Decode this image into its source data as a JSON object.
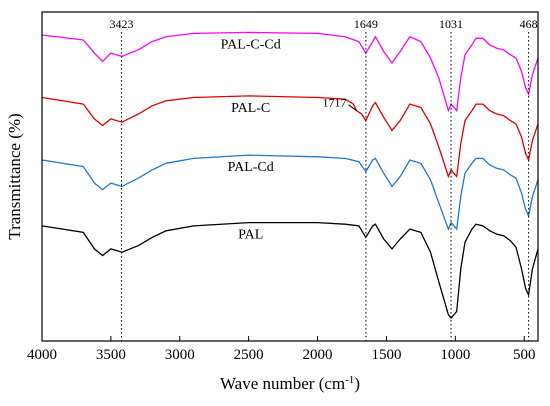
{
  "chart_data": {
    "type": "line",
    "title": "",
    "xlabel": "Wave number (cm",
    "xlabel_sup": "-1",
    "xlabel_suffix": ")",
    "ylabel": "Transmittance (%)",
    "xlim": [
      4000,
      400
    ],
    "x_reversed": true,
    "ylim": [
      0,
      100
    ],
    "grid": false,
    "x_ticks": [
      4000,
      3500,
      3000,
      2500,
      2000,
      1500,
      1000,
      500
    ],
    "x_tick_labels": [
      "4000",
      "3500",
      "3000",
      "2500",
      "2000",
      "1500",
      "1000",
      "500"
    ],
    "peak_markers": [
      {
        "x": 3423,
        "label": "3423"
      },
      {
        "x": 1649,
        "label": "1649"
      },
      {
        "x": 1031,
        "label": "1031"
      },
      {
        "x": 468,
        "label": "468"
      }
    ],
    "annotation": {
      "x": 1717,
      "label": "1717"
    },
    "series": [
      {
        "name": "PAL-C-Cd",
        "color": "#ff00ff",
        "points": [
          [
            4000,
            93
          ],
          [
            3700,
            91.5
          ],
          [
            3620,
            87.5
          ],
          [
            3560,
            85
          ],
          [
            3500,
            87.5
          ],
          [
            3420,
            86.5
          ],
          [
            3300,
            88.5
          ],
          [
            3200,
            91
          ],
          [
            3100,
            92.5
          ],
          [
            2900,
            93.5
          ],
          [
            2500,
            93.8
          ],
          [
            2000,
            93.5
          ],
          [
            1800,
            92.5
          ],
          [
            1700,
            91
          ],
          [
            1650,
            87.5
          ],
          [
            1600,
            91
          ],
          [
            1580,
            92.5
          ],
          [
            1520,
            88
          ],
          [
            1460,
            84.5
          ],
          [
            1400,
            88
          ],
          [
            1330,
            92.5
          ],
          [
            1250,
            91
          ],
          [
            1180,
            86
          ],
          [
            1120,
            80
          ],
          [
            1050,
            70
          ],
          [
            1031,
            72
          ],
          [
            990,
            70
          ],
          [
            960,
            80
          ],
          [
            930,
            87
          ],
          [
            880,
            90
          ],
          [
            850,
            92
          ],
          [
            800,
            92
          ],
          [
            750,
            90
          ],
          [
            700,
            89
          ],
          [
            650,
            88.5
          ],
          [
            600,
            87
          ],
          [
            560,
            86
          ],
          [
            520,
            82
          ],
          [
            490,
            77
          ],
          [
            468,
            75
          ],
          [
            440,
            81
          ],
          [
            400,
            86
          ]
        ]
      },
      {
        "name": "PAL-C",
        "color": "#e00000",
        "points": [
          [
            4000,
            74
          ],
          [
            3700,
            72
          ],
          [
            3620,
            67.5
          ],
          [
            3560,
            65.5
          ],
          [
            3500,
            67.5
          ],
          [
            3420,
            66.5
          ],
          [
            3300,
            69
          ],
          [
            3200,
            71.5
          ],
          [
            3100,
            73
          ],
          [
            2900,
            74
          ],
          [
            2500,
            74.5
          ],
          [
            2000,
            74
          ],
          [
            1800,
            73.5
          ],
          [
            1740,
            72
          ],
          [
            1717,
            70
          ],
          [
            1680,
            69
          ],
          [
            1650,
            67
          ],
          [
            1600,
            71.5
          ],
          [
            1580,
            72.5
          ],
          [
            1520,
            68
          ],
          [
            1460,
            64
          ],
          [
            1400,
            67
          ],
          [
            1330,
            72
          ],
          [
            1250,
            71
          ],
          [
            1180,
            66
          ],
          [
            1120,
            59
          ],
          [
            1050,
            50
          ],
          [
            1031,
            52
          ],
          [
            990,
            50
          ],
          [
            960,
            60
          ],
          [
            930,
            67
          ],
          [
            880,
            70
          ],
          [
            850,
            72
          ],
          [
            800,
            72
          ],
          [
            750,
            70
          ],
          [
            700,
            69
          ],
          [
            650,
            68.5
          ],
          [
            600,
            67
          ],
          [
            560,
            66
          ],
          [
            520,
            62
          ],
          [
            490,
            57
          ],
          [
            468,
            55
          ],
          [
            440,
            61
          ],
          [
            400,
            66
          ]
        ]
      },
      {
        "name": "PAL-Cd",
        "color": "#1e78d2",
        "points": [
          [
            4000,
            55
          ],
          [
            3700,
            53
          ],
          [
            3620,
            48
          ],
          [
            3560,
            46
          ],
          [
            3500,
            48
          ],
          [
            3420,
            47
          ],
          [
            3300,
            49.5
          ],
          [
            3200,
            52
          ],
          [
            3100,
            54
          ],
          [
            2900,
            55.5
          ],
          [
            2500,
            56.5
          ],
          [
            2000,
            56
          ],
          [
            1800,
            55.5
          ],
          [
            1700,
            54.5
          ],
          [
            1650,
            51.5
          ],
          [
            1600,
            55
          ],
          [
            1580,
            55.5
          ],
          [
            1520,
            51
          ],
          [
            1460,
            47
          ],
          [
            1400,
            50
          ],
          [
            1330,
            55
          ],
          [
            1250,
            54
          ],
          [
            1180,
            49
          ],
          [
            1120,
            42
          ],
          [
            1050,
            34
          ],
          [
            1031,
            36
          ],
          [
            990,
            34
          ],
          [
            960,
            44
          ],
          [
            930,
            51
          ],
          [
            880,
            54
          ],
          [
            850,
            55.5
          ],
          [
            800,
            55.5
          ],
          [
            750,
            53.5
          ],
          [
            700,
            52.5
          ],
          [
            650,
            52
          ],
          [
            600,
            50.5
          ],
          [
            560,
            49.5
          ],
          [
            520,
            45
          ],
          [
            490,
            40
          ],
          [
            468,
            38
          ],
          [
            440,
            44
          ],
          [
            400,
            49
          ]
        ]
      },
      {
        "name": "PAL",
        "color": "#000000",
        "points": [
          [
            4000,
            35
          ],
          [
            3700,
            33
          ],
          [
            3620,
            28
          ],
          [
            3560,
            26
          ],
          [
            3500,
            28
          ],
          [
            3420,
            27
          ],
          [
            3300,
            29
          ],
          [
            3200,
            31.5
          ],
          [
            3100,
            33.5
          ],
          [
            2900,
            35
          ],
          [
            2500,
            36
          ],
          [
            2000,
            36
          ],
          [
            1800,
            35.5
          ],
          [
            1700,
            35
          ],
          [
            1650,
            31.5
          ],
          [
            1600,
            35
          ],
          [
            1580,
            35.5
          ],
          [
            1520,
            31
          ],
          [
            1460,
            28
          ],
          [
            1400,
            31
          ],
          [
            1330,
            34
          ],
          [
            1250,
            33
          ],
          [
            1180,
            27
          ],
          [
            1120,
            18
          ],
          [
            1050,
            8
          ],
          [
            1031,
            7
          ],
          [
            990,
            9
          ],
          [
            960,
            22
          ],
          [
            930,
            30
          ],
          [
            880,
            34
          ],
          [
            850,
            35.5
          ],
          [
            800,
            35
          ],
          [
            750,
            33.5
          ],
          [
            700,
            32.5
          ],
          [
            650,
            32
          ],
          [
            600,
            30.5
          ],
          [
            560,
            28.5
          ],
          [
            520,
            22
          ],
          [
            490,
            16
          ],
          [
            468,
            14
          ],
          [
            440,
            22
          ],
          [
            400,
            28
          ]
        ]
      }
    ]
  }
}
